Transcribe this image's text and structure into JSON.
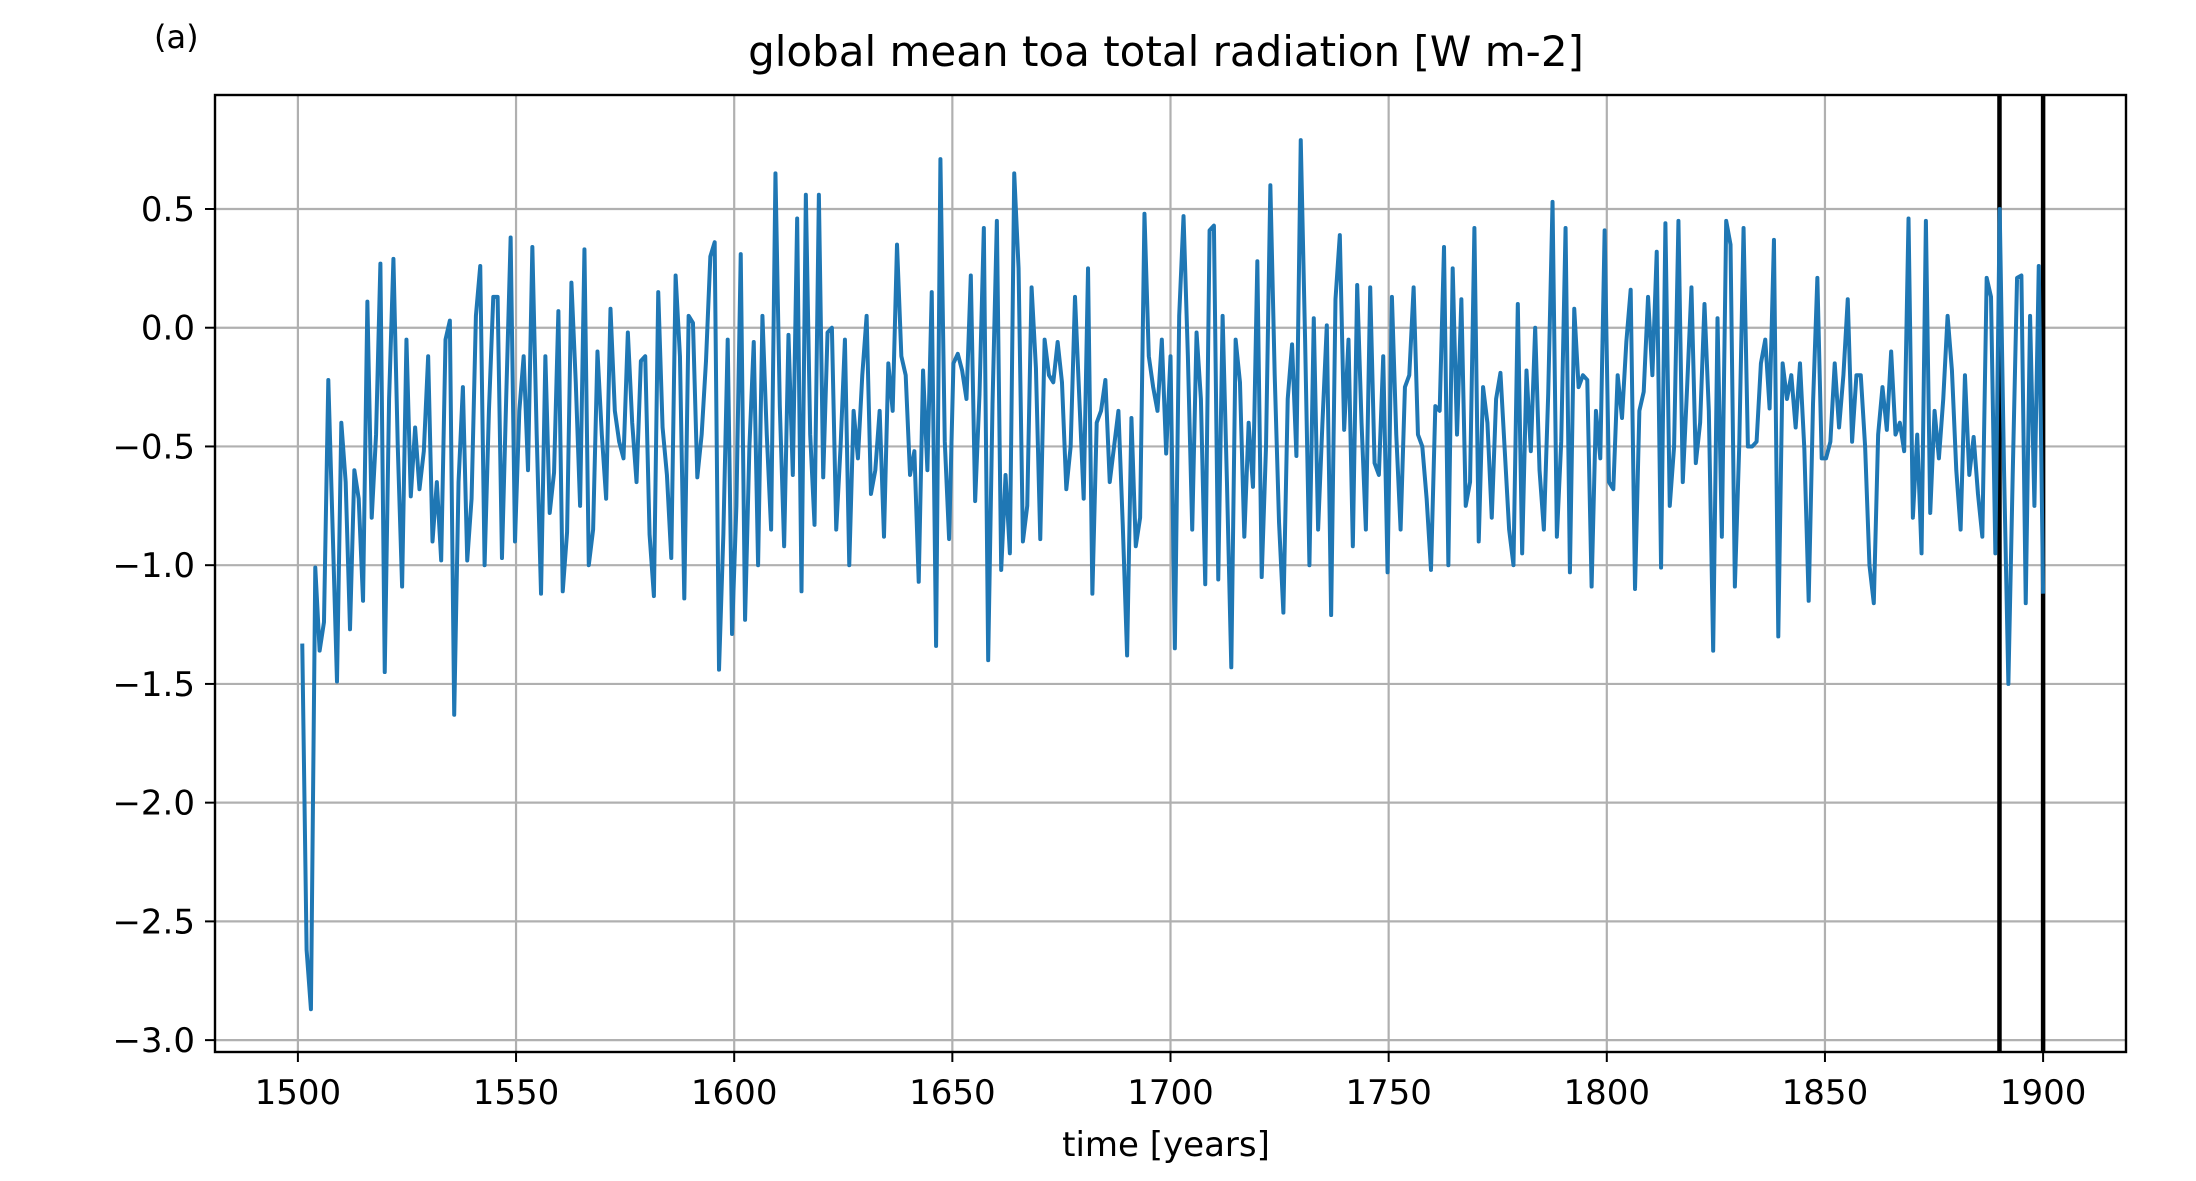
{
  "panel_label": "(a)",
  "chart_data": {
    "type": "line",
    "title": "global mean toa total radiation [W m-2]",
    "xlabel": "time [years]",
    "ylabel": "",
    "xlim": [
      1481,
      1919
    ],
    "ylim": [
      -3.05,
      0.98
    ],
    "xticks": [
      1500,
      1550,
      1600,
      1650,
      1700,
      1750,
      1800,
      1850,
      1900
    ],
    "xtick_labels": [
      "1500",
      "1550",
      "1600",
      "1650",
      "1700",
      "1750",
      "1800",
      "1850",
      "1900"
    ],
    "yticks": [
      0.5,
      0.0,
      -0.5,
      -1.0,
      -1.5,
      -2.0,
      -2.5,
      -3.0
    ],
    "ytick_labels": [
      "0.5",
      "0.0",
      "−0.5",
      "−1.0",
      "−1.5",
      "−2.0",
      "−2.5",
      "−3.0"
    ],
    "grid": true,
    "series_color": "#1f77b4",
    "vlines": [
      1890,
      1900
    ],
    "vline_color": "#000000",
    "x_start": 1501,
    "x_end": 1900,
    "y": [
      -1.33,
      -2.62,
      -2.87,
      -1.01,
      -1.36,
      -1.24,
      -0.22,
      -0.85,
      -1.49,
      -0.4,
      -0.65,
      -1.27,
      -0.6,
      -0.72,
      -1.15,
      0.11,
      -0.8,
      -0.45,
      0.27,
      -1.45,
      -0.3,
      0.29,
      -0.5,
      -1.09,
      -0.05,
      -0.71,
      -0.42,
      -0.68,
      -0.52,
      -0.12,
      -0.9,
      -0.65,
      -0.98,
      -0.05,
      0.03,
      -1.63,
      -0.65,
      -0.25,
      -0.98,
      -0.72,
      0.05,
      0.26,
      -1.0,
      -0.35,
      0.13,
      0.13,
      -0.97,
      -0.28,
      0.38,
      -0.9,
      -0.35,
      -0.12,
      -0.6,
      0.34,
      -0.45,
      -1.12,
      -0.12,
      -0.78,
      -0.61,
      0.07,
      -1.11,
      -0.86,
      0.19,
      -0.23,
      -0.75,
      0.33,
      -1.0,
      -0.85,
      -0.1,
      -0.45,
      -0.72,
      0.08,
      -0.35,
      -0.48,
      -0.55,
      -0.02,
      -0.4,
      -0.65,
      -0.14,
      -0.12,
      -0.87,
      -1.13,
      0.15,
      -0.42,
      -0.62,
      -0.97,
      0.22,
      -0.12,
      -1.14,
      0.05,
      0.02,
      -0.63,
      -0.45,
      -0.14,
      0.3,
      0.36,
      -1.44,
      -0.87,
      -0.05,
      -1.29,
      -0.75,
      0.31,
      -1.23,
      -0.5,
      -0.06,
      -1.0,
      0.05,
      -0.45,
      -0.85,
      0.65,
      -0.33,
      -0.92,
      -0.03,
      -0.62,
      0.46,
      -1.11,
      0.56,
      -0.45,
      -0.83,
      0.56,
      -0.63,
      -0.02,
      0.0,
      -0.85,
      -0.5,
      -0.05,
      -1.0,
      -0.35,
      -0.55,
      -0.2,
      0.05,
      -0.7,
      -0.6,
      -0.35,
      -0.88,
      -0.15,
      -0.35,
      0.35,
      -0.12,
      -0.2,
      -0.62,
      -0.52,
      -1.07,
      -0.18,
      -0.6,
      0.15,
      -1.34,
      0.71,
      -0.48,
      -0.89,
      -0.15,
      -0.11,
      -0.18,
      -0.3,
      0.22,
      -0.73,
      -0.28,
      0.42,
      -1.4,
      -0.32,
      0.45,
      -1.02,
      -0.62,
      -0.95,
      0.65,
      0.25,
      -0.9,
      -0.75,
      0.17,
      -0.17,
      -0.89,
      -0.05,
      -0.2,
      -0.23,
      -0.06,
      -0.23,
      -0.68,
      -0.5,
      0.13,
      -0.3,
      -0.72,
      0.25,
      -1.12,
      -0.4,
      -0.35,
      -0.22,
      -0.65,
      -0.5,
      -0.35,
      -0.83,
      -1.38,
      -0.38,
      -0.92,
      -0.8,
      0.48,
      -0.12,
      -0.25,
      -0.35,
      -0.05,
      -0.53,
      -0.12,
      -1.35,
      0.05,
      0.47,
      -0.12,
      -0.85,
      -0.02,
      -0.3,
      -1.08,
      0.41,
      0.43,
      -1.06,
      0.05,
      -0.65,
      -1.43,
      -0.05,
      -0.23,
      -0.88,
      -0.4,
      -0.67,
      0.28,
      -1.05,
      -0.5,
      0.6,
      -0.2,
      -0.82,
      -1.2,
      -0.3,
      -0.07,
      -0.54,
      0.79,
      -0.05,
      -1.0,
      0.04,
      -0.85,
      -0.4,
      0.01,
      -1.21,
      0.12,
      0.39,
      -0.43,
      -0.05,
      -0.92,
      0.18,
      -0.4,
      -0.85,
      0.17,
      -0.57,
      -0.62,
      -0.12,
      -1.03,
      0.13,
      -0.45,
      -0.85,
      -0.25,
      -0.2,
      0.17,
      -0.45,
      -0.5,
      -0.72,
      -1.02,
      -0.33,
      -0.35,
      0.34,
      -1.0,
      0.25,
      -0.45,
      0.12,
      -0.75,
      -0.65,
      0.42,
      -0.9,
      -0.25,
      -0.4,
      -0.8,
      -0.3,
      -0.19,
      -0.52,
      -0.85,
      -1.0,
      0.1,
      -0.95,
      -0.18,
      -0.52,
      0.0,
      -0.6,
      -0.85,
      -0.28,
      0.53,
      -0.88,
      -0.48,
      0.42,
      -1.03,
      0.08,
      -0.25,
      -0.2,
      -0.22,
      -1.09,
      -0.35,
      -0.55,
      0.41,
      -0.65,
      -0.68,
      -0.2,
      -0.38,
      -0.06,
      0.16,
      -1.1,
      -0.35,
      -0.27,
      0.13,
      -0.2,
      0.32,
      -1.01,
      0.44,
      -0.75,
      -0.5,
      0.45,
      -0.65,
      -0.25,
      0.17,
      -0.57,
      -0.4,
      0.1,
      -0.35,
      -1.36,
      0.04,
      -0.88,
      0.45,
      0.35,
      -1.09,
      -0.5,
      0.42,
      -0.5,
      -0.5,
      -0.48,
      -0.15,
      -0.05,
      -0.34,
      0.37,
      -1.3,
      -0.15,
      -0.3,
      -0.2,
      -0.42,
      -0.15,
      -0.51,
      -1.15,
      -0.32,
      0.21,
      -0.55,
      -0.55,
      -0.48,
      -0.15,
      -0.42,
      -0.2,
      0.12,
      -0.48,
      -0.2,
      -0.2,
      -0.5,
      -1.0,
      -1.16,
      -0.45,
      -0.25,
      -0.43,
      -0.1,
      -0.45,
      -0.4,
      -0.52,
      0.46,
      -0.8,
      -0.45,
      -0.95,
      0.45,
      -0.78,
      -0.35,
      -0.55,
      -0.3,
      0.05,
      -0.18,
      -0.6,
      -0.85,
      -0.2,
      -0.62,
      -0.46,
      -0.7,
      -0.88,
      0.21,
      0.13,
      -0.95,
      0.5,
      -0.6,
      -1.5,
      -0.62,
      0.21,
      0.22,
      -1.16,
      0.05,
      -0.75,
      0.26,
      -1.12
    ]
  }
}
